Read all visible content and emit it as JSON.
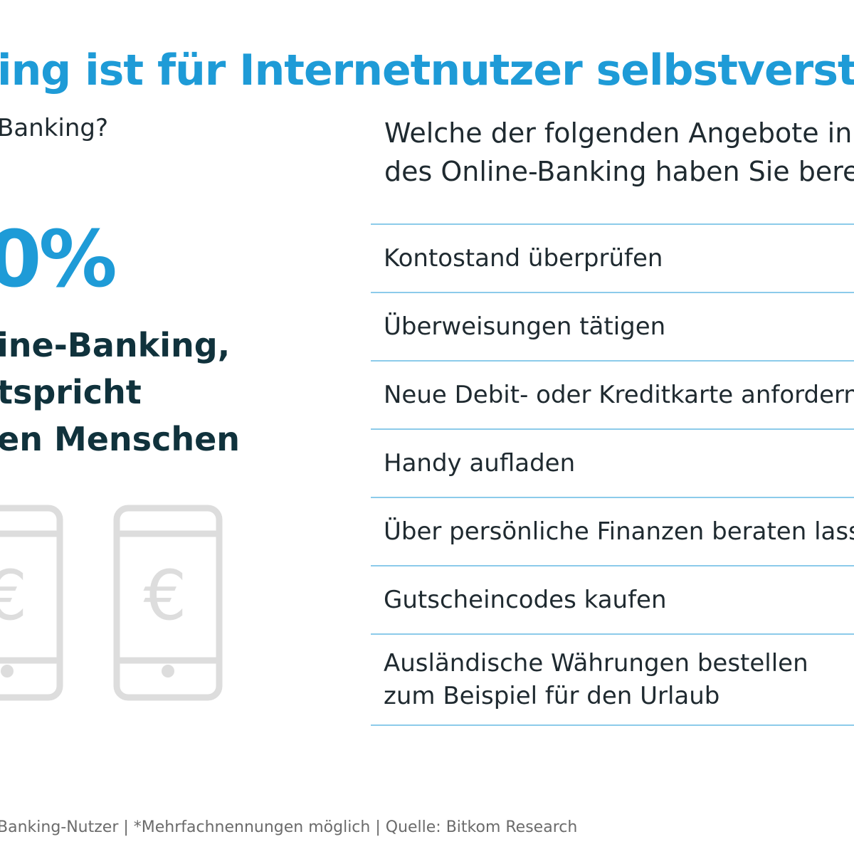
{
  "title": "ing ist für Internetnutzer selbstverständli",
  "left_panel": {
    "question": "Banking?",
    "big_number": "0%",
    "statement_lines": [
      "ine-Banking,",
      "tspricht",
      "en Menschen"
    ],
    "icons": [
      "smartphone-euro-icon",
      "smartphone-euro-icon"
    ],
    "icon_glyph": "€"
  },
  "right_panel": {
    "question_lines": [
      "Welche der folgenden Angebote in",
      "des Online-Banking haben Sie bere"
    ],
    "options": [
      {
        "lines": [
          "Kontostand überprüfen"
        ]
      },
      {
        "lines": [
          "Überweisungen tätigen"
        ]
      },
      {
        "lines": [
          "Neue Debit- oder Kreditkarte anfordern"
        ]
      },
      {
        "lines": [
          "Handy aufladen"
        ]
      },
      {
        "lines": [
          "Über persönliche Finanzen beraten lass"
        ]
      },
      {
        "lines": [
          "Gutscheincodes kaufen"
        ]
      },
      {
        "lines": [
          "Ausländische Währungen bestellen",
          "zum Beispiel für den Urlaub"
        ]
      }
    ]
  },
  "footer": "Banking-Nutzer | *Mehrfachnennungen möglich | Quelle: Bitkom Research",
  "colors": {
    "accent_blue": "#1e9bd7",
    "divider_blue": "#8ccbea",
    "dark_text": "#10323c",
    "icon_gray": "#dddddd"
  }
}
